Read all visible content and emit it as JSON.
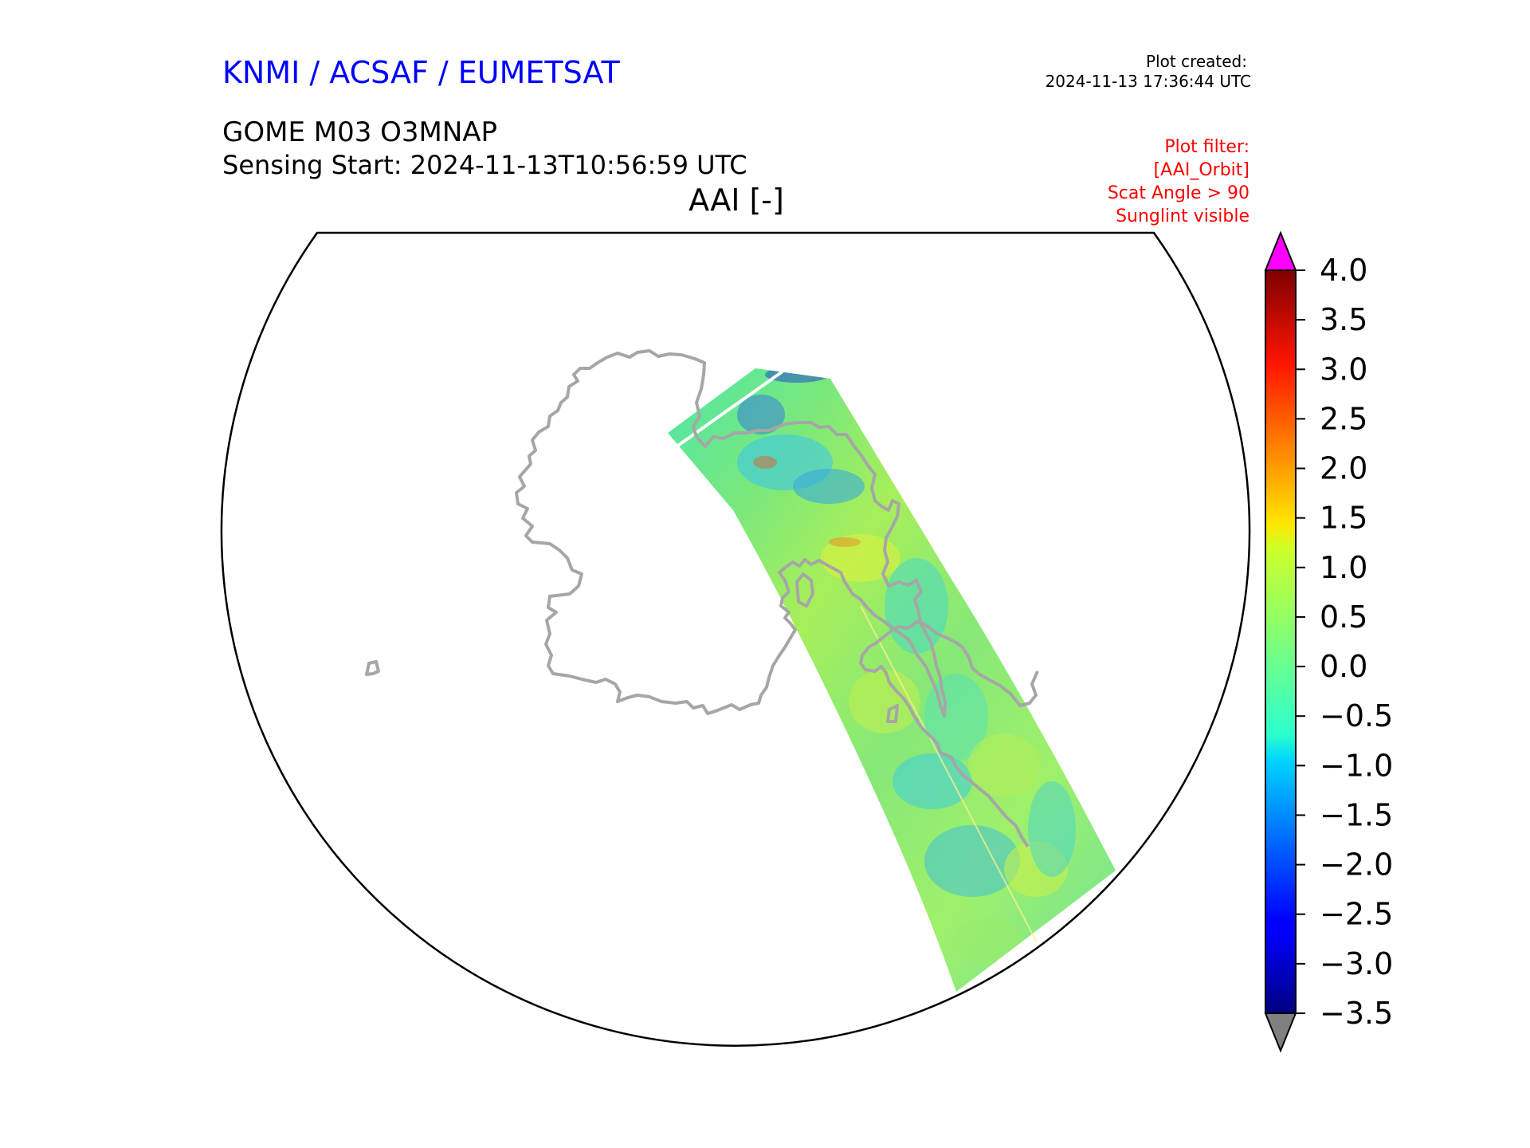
{
  "header": {
    "organization": "KNMI / ACSAF / EUMETSAT",
    "plot_created_label": "Plot created:",
    "plot_created_time": "2024-11-13 17:36:44 UTC",
    "product": "GOME M03 O3MNAP",
    "sensing_start": "Sensing Start: 2024-11-13T10:56:59 UTC",
    "variable_title": "AAI [-]"
  },
  "filters": {
    "title": "Plot filter:",
    "items": [
      "[AAI_Orbit]",
      "Scat Angle > 90",
      "Sunglint visible"
    ]
  },
  "colorbar": {
    "min": -3.5,
    "max": 4.0,
    "ticks": [
      "4.0",
      "3.5",
      "3.0",
      "2.5",
      "2.0",
      "1.5",
      "1.0",
      "0.5",
      "0.0",
      "−0.5",
      "−1.0",
      "−1.5",
      "−2.0",
      "−2.5",
      "−3.0",
      "−3.5"
    ],
    "colormap": "jet",
    "over_color": "#ff00ff",
    "under_color": "#808080"
  },
  "colors": {
    "org_title": "#0000ff",
    "filter_text": "#ff0000",
    "coastline": "#a6a6a6"
  }
}
